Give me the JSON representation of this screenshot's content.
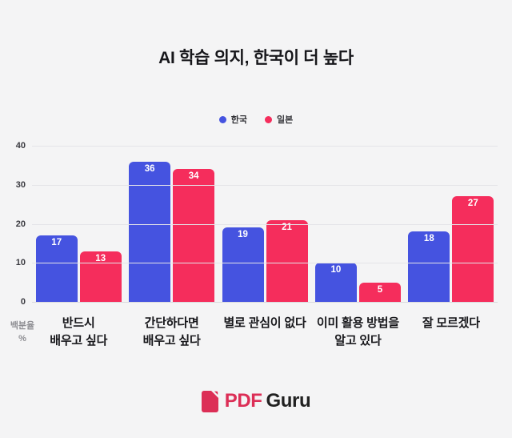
{
  "title": "AI 학습 의지, 한국이 더 높다",
  "chart_data": {
    "type": "bar",
    "title": "AI 학습 의지, 한국이 더 높다",
    "categories": [
      "반드시\n배우고 싶다",
      "간단하다면\n배우고 싶다",
      "별로 관심이 없다",
      "이미 활용 방법을\n알고 있다",
      "잘 모르겠다"
    ],
    "series": [
      {
        "name": "한국",
        "color": "#4553E0",
        "values": [
          17,
          36,
          19,
          10,
          18
        ]
      },
      {
        "name": "일본",
        "color": "#F52D5C",
        "values": [
          13,
          34,
          21,
          5,
          27
        ]
      }
    ],
    "xlabel": "",
    "ylabel": "백분율\n%",
    "ylim": [
      0,
      40
    ],
    "yticks": [
      0,
      10,
      20,
      30,
      40
    ],
    "grid": true,
    "legend_position": "top-center",
    "value_labels": "inside-top"
  },
  "footer": {
    "logo_pdf": "PDF",
    "logo_guru": "Guru",
    "logo_color": "#DC2E56"
  },
  "colors": {
    "background": "#F4F4F5",
    "gridline": "#E4E4E8",
    "korea_blue": "#4553E0",
    "japan_pink": "#F52D5C"
  }
}
